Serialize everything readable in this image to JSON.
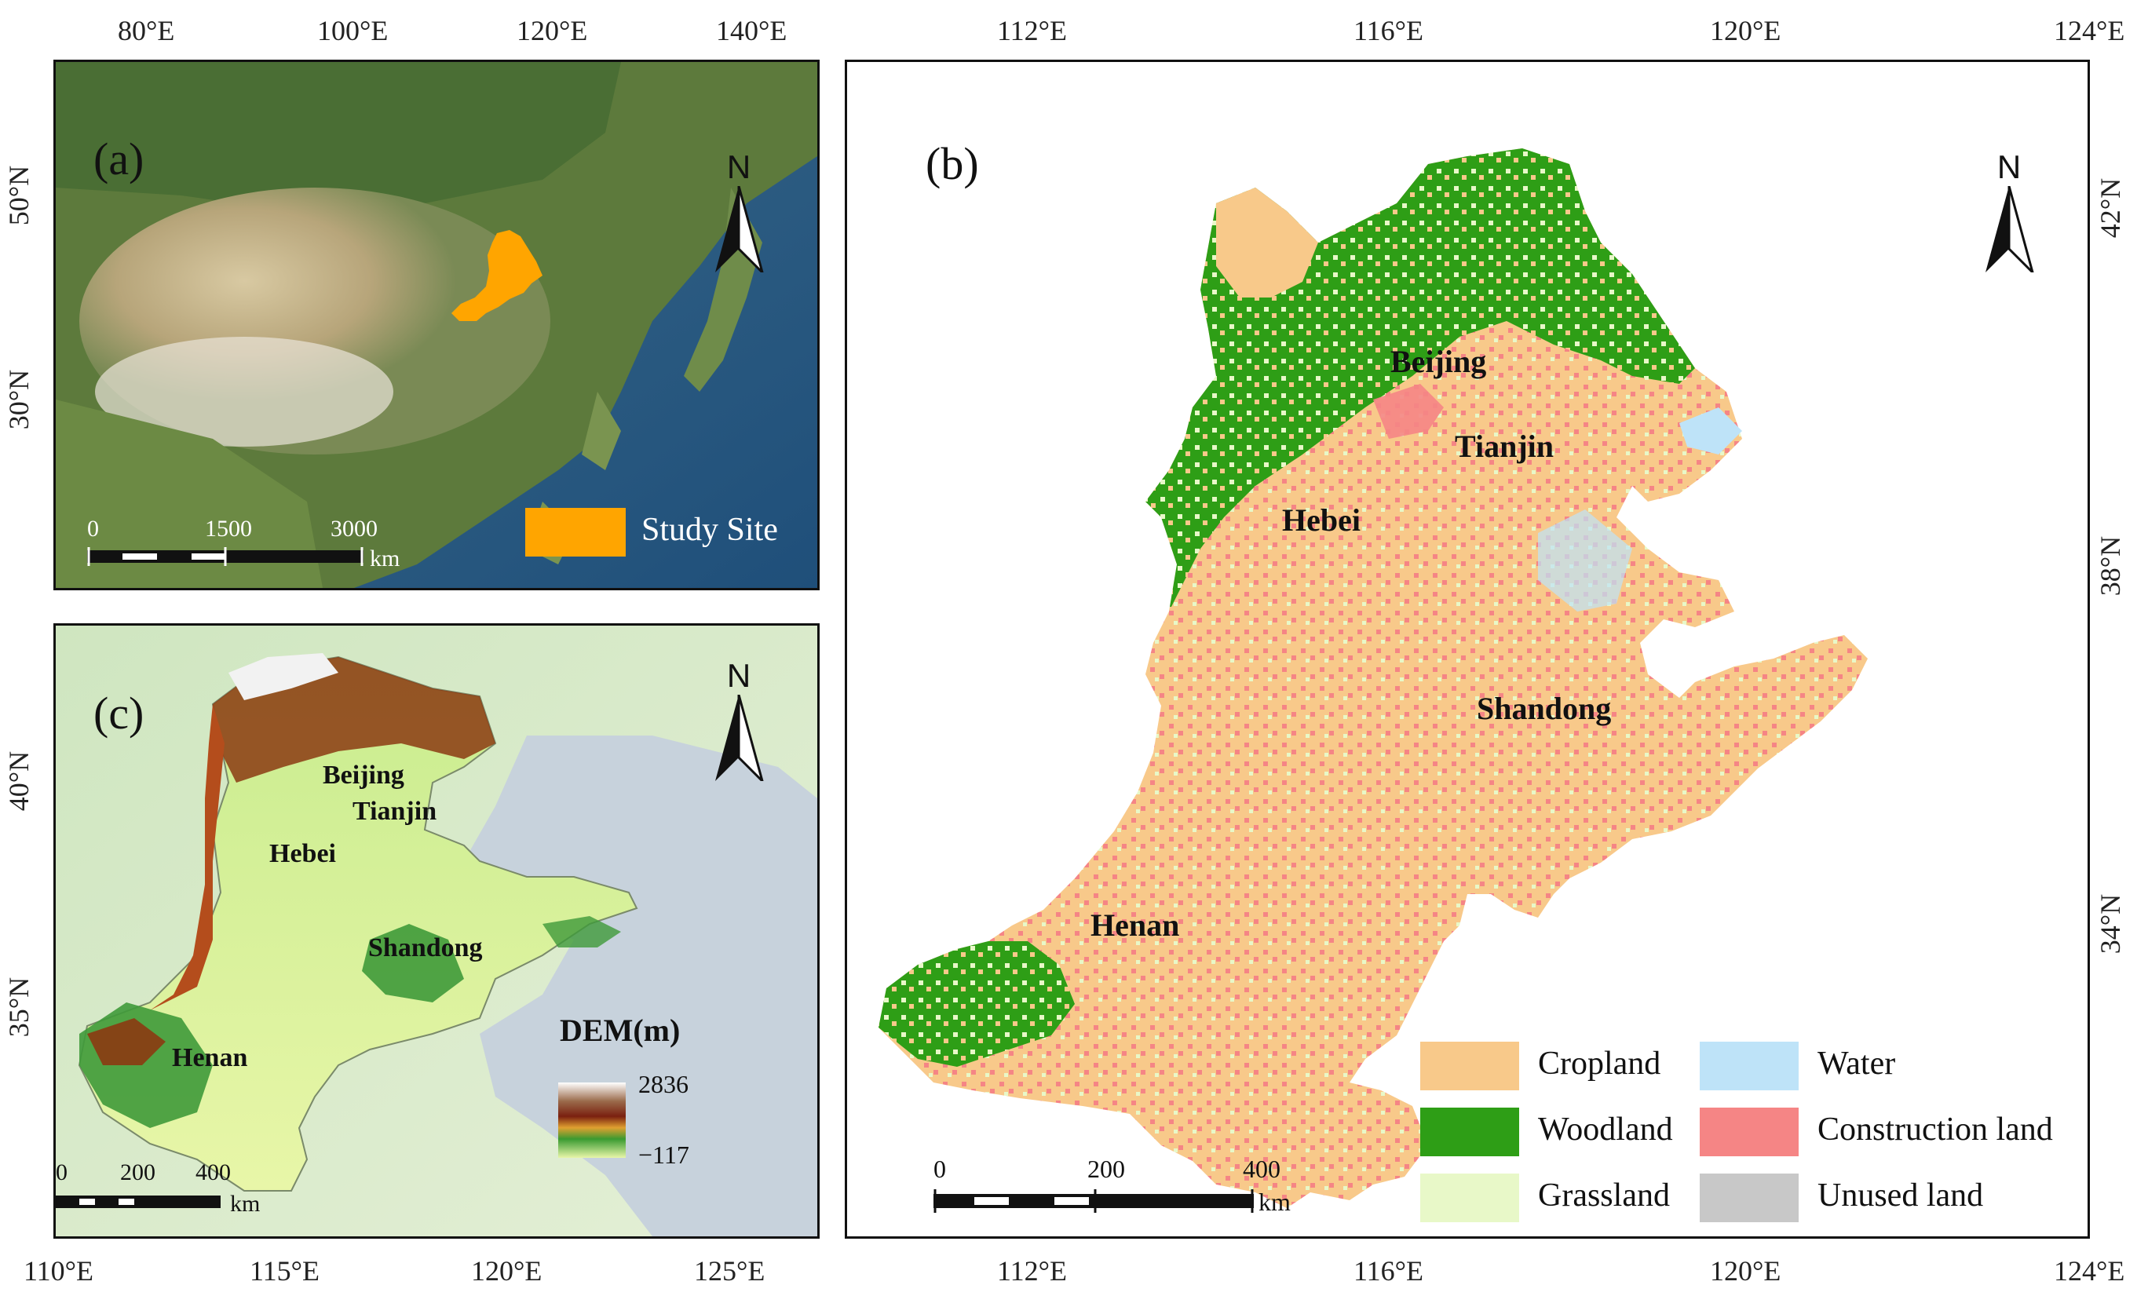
{
  "panel_a": {
    "label": "(a)",
    "north_label": "N",
    "legend_label": "Study Site",
    "scale": {
      "zero": "0",
      "mid": "1500",
      "end": "3000",
      "unit": "km"
    },
    "lon_ticks": [
      "80°E",
      "100°E",
      "120°E",
      "140°E"
    ],
    "lat_ticks": [
      "50°N",
      "30°N"
    ],
    "colors": {
      "study_site": "#FFA500"
    }
  },
  "panel_b": {
    "label": "(b)",
    "north_label": "N",
    "regions": {
      "beijing": "Beijing",
      "tianjin": "Tianjin",
      "hebei": "Hebei",
      "shandong": "Shandong",
      "henan": "Henan"
    },
    "scale": {
      "zero": "0",
      "mid": "200",
      "end": "400",
      "unit": "km"
    },
    "lon_ticks_top": [
      "112°E",
      "116°E",
      "120°E",
      "124°E"
    ],
    "lon_ticks_bottom": [
      "112°E",
      "116°E",
      "120°E",
      "124°E"
    ],
    "lat_ticks": [
      "42°N",
      "38°N",
      "34°N"
    ],
    "legend": [
      {
        "label": "Cropland",
        "color": "#F8C98A"
      },
      {
        "label": "Water",
        "color": "#BEE3F8"
      },
      {
        "label": "Woodland",
        "color": "#2E9E16"
      },
      {
        "label": "Construction land",
        "color": "#F58585"
      },
      {
        "label": "Grassland",
        "color": "#E8F8C8"
      },
      {
        "label": "Unused land",
        "color": "#C8C8C8"
      }
    ]
  },
  "panel_c": {
    "label": "(c)",
    "north_label": "N",
    "regions": {
      "beijing": "Beijing",
      "tianjin": "Tianjin",
      "hebei": "Hebei",
      "shandong": "Shandong",
      "henan": "Henan"
    },
    "dem_title": "DEM(m)",
    "dem_max": "2836",
    "dem_min": "−117",
    "scale": {
      "zero": "0",
      "mid": "200",
      "end": "400",
      "unit": "km"
    },
    "lon_ticks": [
      "110°E",
      "115°E",
      "120°E",
      "125°E"
    ],
    "lat_ticks": [
      "40°N",
      "35°N"
    ]
  }
}
